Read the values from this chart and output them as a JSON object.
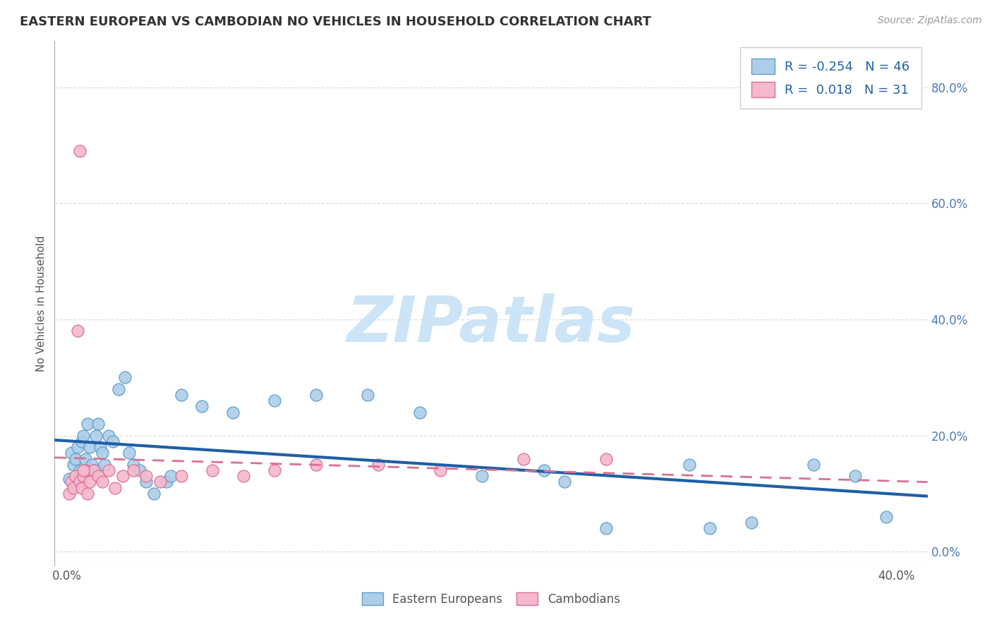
{
  "title": "EASTERN EUROPEAN VS CAMBODIAN NO VEHICLES IN HOUSEHOLD CORRELATION CHART",
  "source": "Source: ZipAtlas.com",
  "ylabel": "No Vehicles in Household",
  "ytick_vals": [
    0.0,
    0.2,
    0.4,
    0.6,
    0.8
  ],
  "ytick_labels": [
    "0.0%",
    "20.0%",
    "40.0%",
    "60.0%",
    "80.0%"
  ],
  "xtick_vals": [
    0.0,
    0.4
  ],
  "xtick_labels": [
    "0.0%",
    "40.0%"
  ],
  "xlim": [
    -0.006,
    0.415
  ],
  "ylim": [
    -0.025,
    0.88
  ],
  "blue_face": "#aecde8",
  "blue_edge": "#5b9ec9",
  "blue_line": "#1f5fa6",
  "pink_face": "#f5b8cc",
  "pink_edge": "#d97090",
  "pink_line": "#d97090",
  "legend_text_color": "#2060a8",
  "source_color": "#999999",
  "grid_color": "#dddddd",
  "watermark_text": "ZIPatlas",
  "watermark_color": "#cce4f5",
  "bg_color": "#ffffff",
  "eastern_x": [
    0.001,
    0.002,
    0.003,
    0.004,
    0.005,
    0.006,
    0.007,
    0.008,
    0.009,
    0.01,
    0.011,
    0.012,
    0.013,
    0.014,
    0.015,
    0.016,
    0.017,
    0.018,
    0.02,
    0.022,
    0.025,
    0.028,
    0.03,
    0.032,
    0.035,
    0.038,
    0.042,
    0.048,
    0.055,
    0.065,
    0.08,
    0.1,
    0.12,
    0.145,
    0.17,
    0.2,
    0.23,
    0.26,
    0.3,
    0.33,
    0.36,
    0.38,
    0.395,
    0.05,
    0.24,
    0.31
  ],
  "eastern_y": [
    0.125,
    0.17,
    0.15,
    0.16,
    0.18,
    0.14,
    0.19,
    0.2,
    0.16,
    0.22,
    0.18,
    0.15,
    0.14,
    0.2,
    0.22,
    0.18,
    0.17,
    0.15,
    0.2,
    0.19,
    0.28,
    0.3,
    0.17,
    0.15,
    0.14,
    0.12,
    0.1,
    0.12,
    0.27,
    0.25,
    0.24,
    0.26,
    0.27,
    0.27,
    0.24,
    0.13,
    0.14,
    0.04,
    0.15,
    0.05,
    0.15,
    0.13,
    0.06,
    0.13,
    0.12,
    0.04
  ],
  "cambodian_x": [
    0.001,
    0.002,
    0.003,
    0.004,
    0.005,
    0.006,
    0.007,
    0.008,
    0.009,
    0.01,
    0.011,
    0.013,
    0.015,
    0.017,
    0.02,
    0.023,
    0.027,
    0.032,
    0.038,
    0.045,
    0.055,
    0.07,
    0.085,
    0.1,
    0.12,
    0.15,
    0.18,
    0.22,
    0.26,
    0.006,
    0.008
  ],
  "cambodian_y": [
    0.1,
    0.12,
    0.11,
    0.13,
    0.38,
    0.12,
    0.11,
    0.13,
    0.14,
    0.1,
    0.12,
    0.14,
    0.13,
    0.12,
    0.14,
    0.11,
    0.13,
    0.14,
    0.13,
    0.12,
    0.13,
    0.14,
    0.13,
    0.14,
    0.15,
    0.15,
    0.14,
    0.16,
    0.16,
    0.69,
    0.14
  ]
}
